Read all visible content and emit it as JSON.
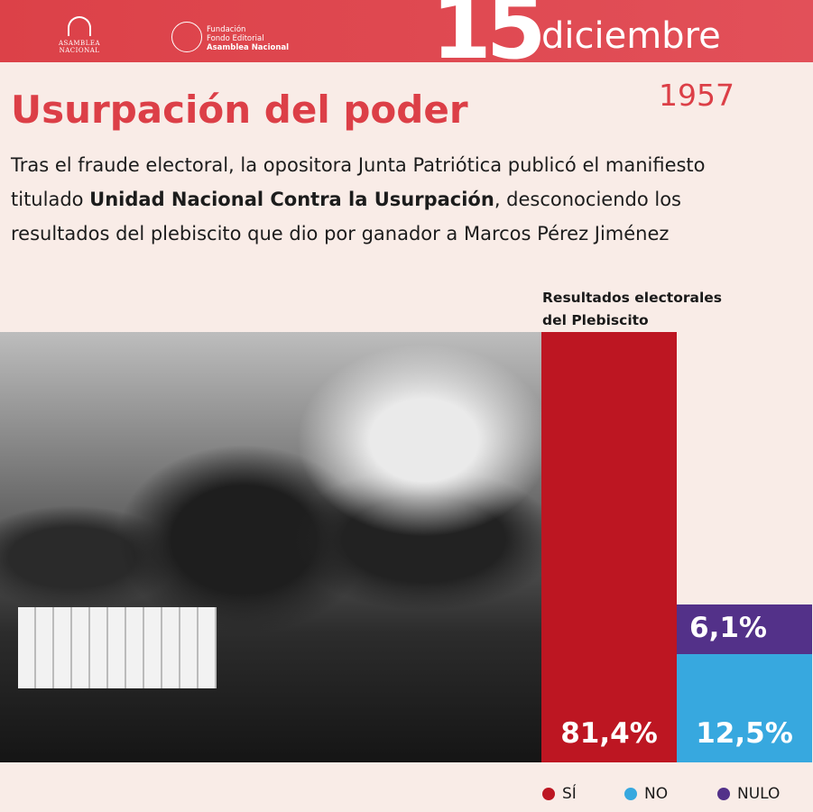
{
  "header": {
    "logo1_text": "ASAMBLEA NACIONAL",
    "logo2_lines": [
      "Fundación",
      "Fondo Editorial",
      "Asamblea Nacional"
    ],
    "day": "15",
    "month": "diciembre"
  },
  "title": "Usurpación del poder",
  "year": "1957",
  "body": {
    "pre": "Tras el fraude electoral, la opositora Junta Patriótica publicó el manifiesto titulado ",
    "bold": "Unidad Nacional Contra la Usurpación",
    "post": ", desconociendo los resultados del plebiscito que dio por ganador a Marcos Pérez Jiménez"
  },
  "colors": {
    "brand": "#dc4148",
    "si": "#bd1622",
    "no": "#37a8df",
    "nulo": "#533189"
  },
  "chart_data": {
    "type": "bar",
    "title": "Resultados electorales del Plebiscito",
    "categories": [
      "SÍ",
      "NO",
      "NULO"
    ],
    "values": [
      81.4,
      12.5,
      6.1
    ],
    "labels": [
      "81,4%",
      "12,5%",
      "6,1%"
    ],
    "legend": "bottom-right"
  }
}
